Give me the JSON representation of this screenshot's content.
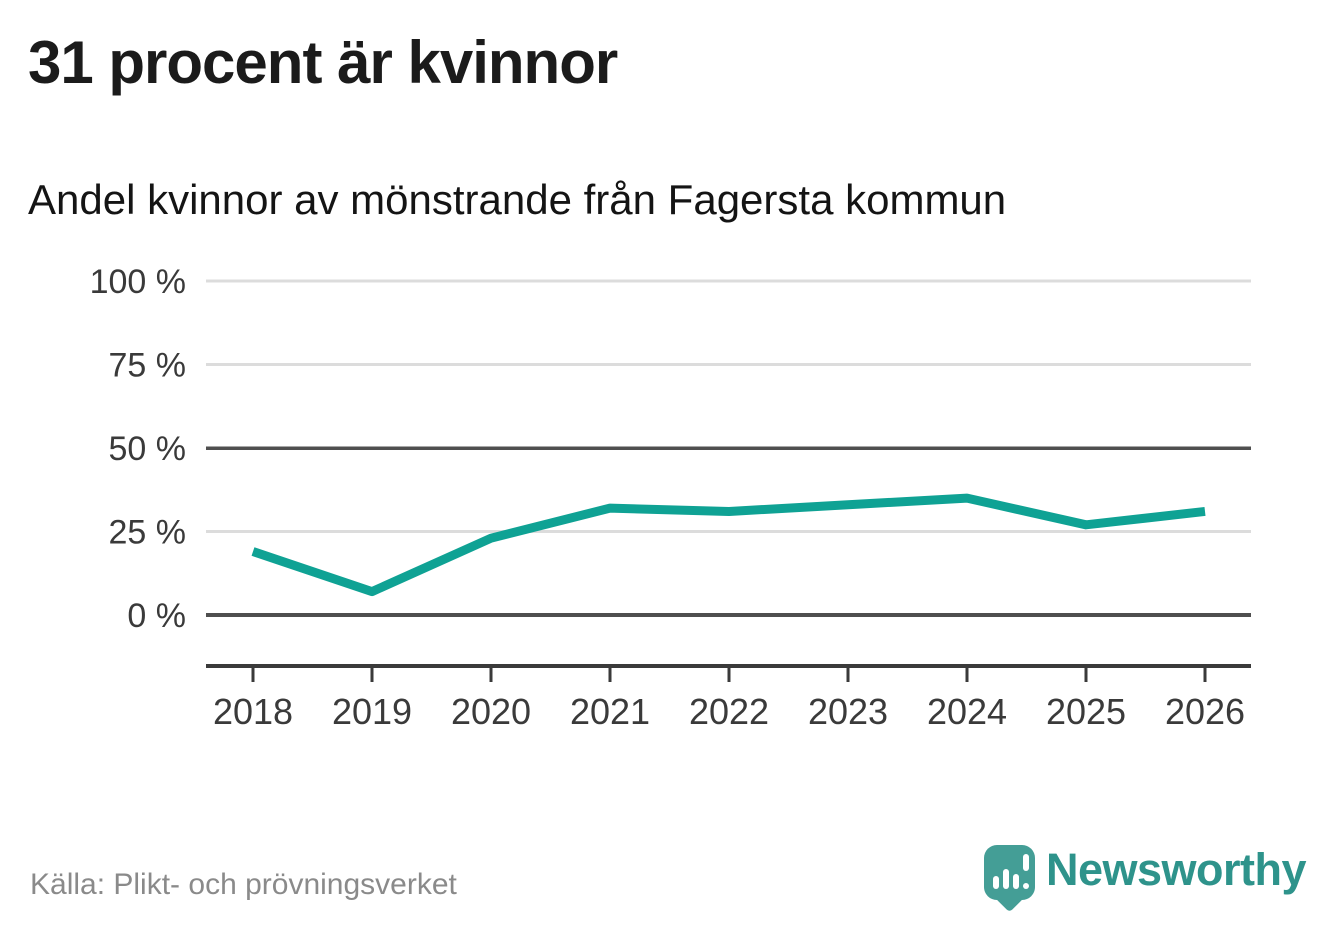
{
  "header": {
    "title": "31 procent är kvinnor",
    "subtitle": "Andel kvinnor av mönstrande från Fagersta kommun"
  },
  "chart_data": {
    "type": "line",
    "title": "Andel kvinnor av mönstrande från Fagersta kommun",
    "categories": [
      "2018",
      "2019",
      "2020",
      "2021",
      "2022",
      "2023",
      "2024",
      "2025",
      "2026"
    ],
    "series": [
      {
        "name": "Andel kvinnor av mönstrande",
        "color": "#0fa294",
        "values": [
          19,
          7,
          23,
          32,
          31,
          33,
          35,
          27,
          31
        ]
      }
    ],
    "xlabel": "",
    "ylabel": "",
    "unit": "%",
    "ylim": [
      0,
      100
    ],
    "y_ticks": [
      0,
      25,
      50,
      75,
      100
    ],
    "y_tick_labels": [
      "0 %",
      "25 %",
      "50 %",
      "75 %",
      "100 %"
    ],
    "grid": "horizontal",
    "emphasized_gridlines": [
      0,
      50
    ],
    "legend": "none"
  },
  "footer": {
    "source_label": "Källa: Plikt- och prövningsverket",
    "brand_name": "Newsworthy"
  },
  "icons": {
    "brand_logo": "newsworthy-speech-bubble-barchart-icon"
  },
  "colors": {
    "line_accent": "#0fa294",
    "brand_bubble": "#449e96",
    "brand_text": "#2e938b",
    "grid_light": "#dcdcdc",
    "grid_dark": "#4f4f4f",
    "axis_line": "#3a3a3a",
    "axis_text": "#3a3a3a",
    "title_text": "#1b1b1b",
    "source_text": "#8a8a8a",
    "background": "#ffffff"
  }
}
